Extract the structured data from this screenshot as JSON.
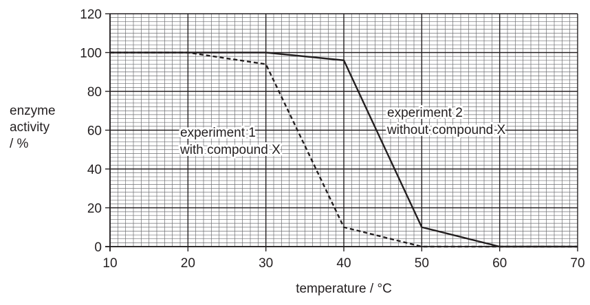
{
  "chart_data": {
    "type": "line",
    "xlabel": "temperature / °C",
    "ylabel_lines": [
      "enzyme",
      "activity",
      "/ %"
    ],
    "xlim": [
      10,
      70
    ],
    "ylim": [
      0,
      120
    ],
    "x_ticks": [
      "10",
      "20",
      "30",
      "40",
      "50",
      "60",
      "70"
    ],
    "y_ticks": [
      "0",
      "20",
      "40",
      "60",
      "80",
      "100",
      "120"
    ],
    "grid": "fine graph paper: minor every 1 °C and 2 %, major every 10 °C and 20 %",
    "series": [
      {
        "name": "experiment 1 with compound X",
        "label_lines": [
          "experiment 1",
          "with compound X"
        ],
        "style": "dashed",
        "x": [
          10,
          20,
          30,
          40,
          50,
          60,
          70
        ],
        "y": [
          100,
          100,
          94,
          10,
          0,
          0,
          0
        ]
      },
      {
        "name": "experiment 2 without compound X",
        "label_lines": [
          "experiment 2",
          "without compound X"
        ],
        "style": "solid",
        "x": [
          10,
          20,
          30,
          40,
          50,
          60,
          70
        ],
        "y": [
          100,
          100,
          100,
          96,
          10,
          0,
          0
        ]
      }
    ]
  },
  "colors": {
    "ink": "#231f20",
    "minor_grid": "#6d6e71",
    "background": "#ffffff"
  }
}
